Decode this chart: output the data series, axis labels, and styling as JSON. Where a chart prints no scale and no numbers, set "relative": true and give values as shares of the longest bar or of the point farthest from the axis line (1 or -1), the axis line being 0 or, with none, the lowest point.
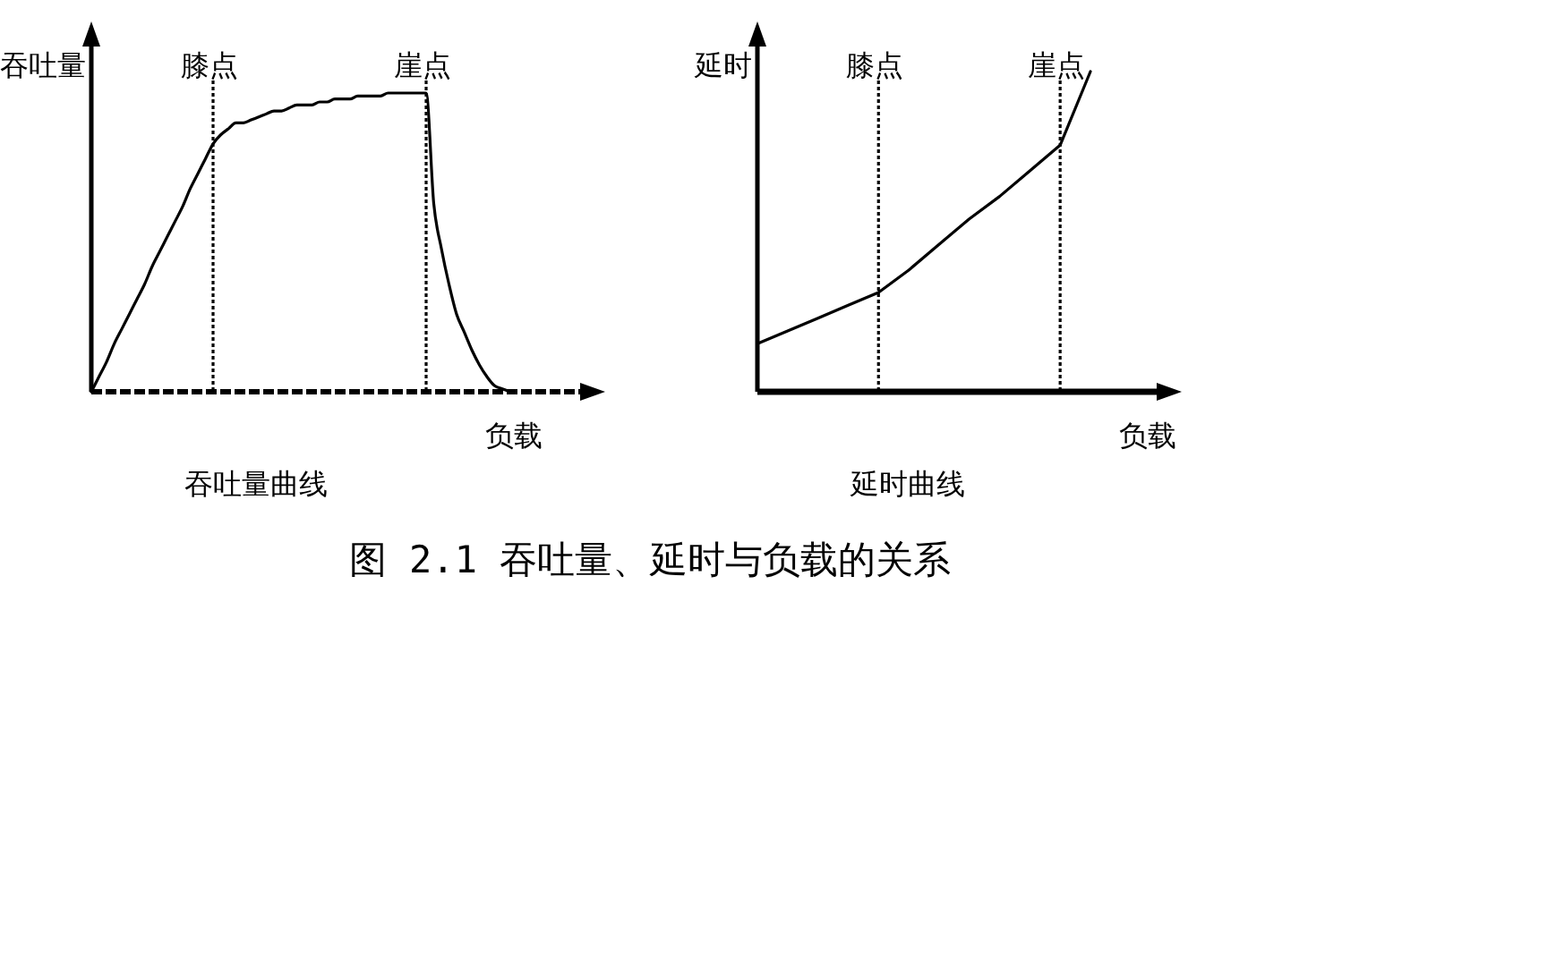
{
  "chart_data": [
    {
      "type": "line",
      "title": "吞吐量曲线",
      "xlabel": "负载",
      "ylabel": "吞吐量",
      "relative": true,
      "categories": [
        null,
        null,
        null,
        null,
        null,
        null,
        null,
        null,
        null,
        null,
        null,
        null,
        null,
        null,
        null,
        null,
        null,
        null,
        null,
        null,
        null,
        null,
        null,
        null,
        null,
        null,
        null,
        null,
        null,
        null,
        null,
        null,
        null,
        null,
        null,
        null,
        null,
        null,
        null,
        null,
        null,
        null,
        null,
        null,
        null,
        null,
        null,
        null,
        null,
        null,
        null,
        null,
        null,
        null,
        null,
        null
      ],
      "values": [
        0,
        0.05,
        0.1,
        0.16,
        0.21,
        0.26,
        0.31,
        0.36,
        0.42,
        0.47,
        0.52,
        0.57,
        0.62,
        0.68,
        0.73,
        0.78,
        0.83,
        0.86,
        0.88,
        0.9,
        0.9,
        0.91,
        0.92,
        0.93,
        0.94,
        0.94,
        0.95,
        0.96,
        0.96,
        0.96,
        0.97,
        0.97,
        0.98,
        0.98,
        0.98,
        0.99,
        0.99,
        0.99,
        0.99,
        1,
        1,
        1,
        1,
        1,
        1,
        0.63,
        0.48,
        0.36,
        0.26,
        0.2,
        0.14,
        0.09,
        0.05,
        0.02,
        0.01,
        0
      ],
      "color": "#000000",
      "annotations": [
        "膝点",
        "崖点"
      ]
    },
    {
      "type": "line",
      "title": "延时曲线",
      "xlabel": "负载",
      "ylabel": "延时",
      "relative": true,
      "categories": [
        null,
        null,
        null,
        null,
        null,
        null,
        null,
        null,
        null,
        null,
        null,
        null
      ],
      "values": [
        0.15,
        0.19,
        0.23,
        0.27,
        0.31,
        0.38,
        0.46,
        0.54,
        0.61,
        0.69,
        0.77,
        1
      ],
      "color": "#000000",
      "annotations": [
        "膝点",
        "崖点"
      ]
    },
    {
      "type": "other",
      "title": "图 2.1 吞吐量、延时与负载的关系"
    }
  ]
}
